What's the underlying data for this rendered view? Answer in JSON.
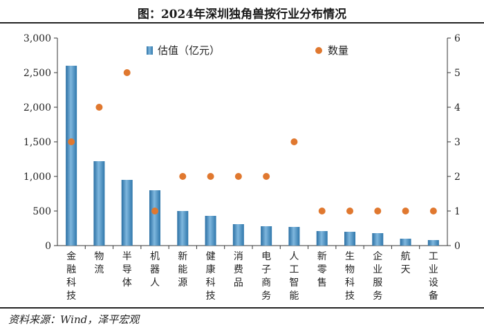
{
  "title": "图：2024年深圳独角兽按行业分布情况",
  "source": "资料来源：Wind，泽平宏观",
  "chart_data": {
    "type": "bar+scatter",
    "categories": [
      "金融科技",
      "物流",
      "半导体",
      "机器人",
      "新能源",
      "健康科技",
      "消费品",
      "电子商务",
      "人工智能",
      "新零售",
      "生物科技",
      "企业服务",
      "航天",
      "工业设备"
    ],
    "series": [
      {
        "name": "估值（亿元）",
        "type": "bar",
        "axis": "left",
        "color": "#3d85b8",
        "values": [
          2600,
          1220,
          950,
          800,
          500,
          430,
          310,
          280,
          270,
          210,
          200,
          180,
          100,
          80
        ]
      },
      {
        "name": "数量",
        "type": "scatter",
        "axis": "right",
        "color": "#e0782f",
        "values": [
          3,
          4,
          5,
          1,
          2,
          2,
          2,
          2,
          3,
          1,
          1,
          1,
          1,
          1
        ]
      }
    ],
    "y_left": {
      "ylim": [
        0,
        3000
      ],
      "ticks": [
        "0",
        "500",
        "1,000",
        "1,500",
        "2,000",
        "2,500",
        "3,000"
      ]
    },
    "y_right": {
      "ylim": [
        0,
        6
      ],
      "ticks": [
        "0",
        "1",
        "2",
        "3",
        "4",
        "5",
        "6"
      ]
    },
    "legend": {
      "placement": "top",
      "items": [
        "估值（亿元）",
        "数量"
      ]
    }
  }
}
